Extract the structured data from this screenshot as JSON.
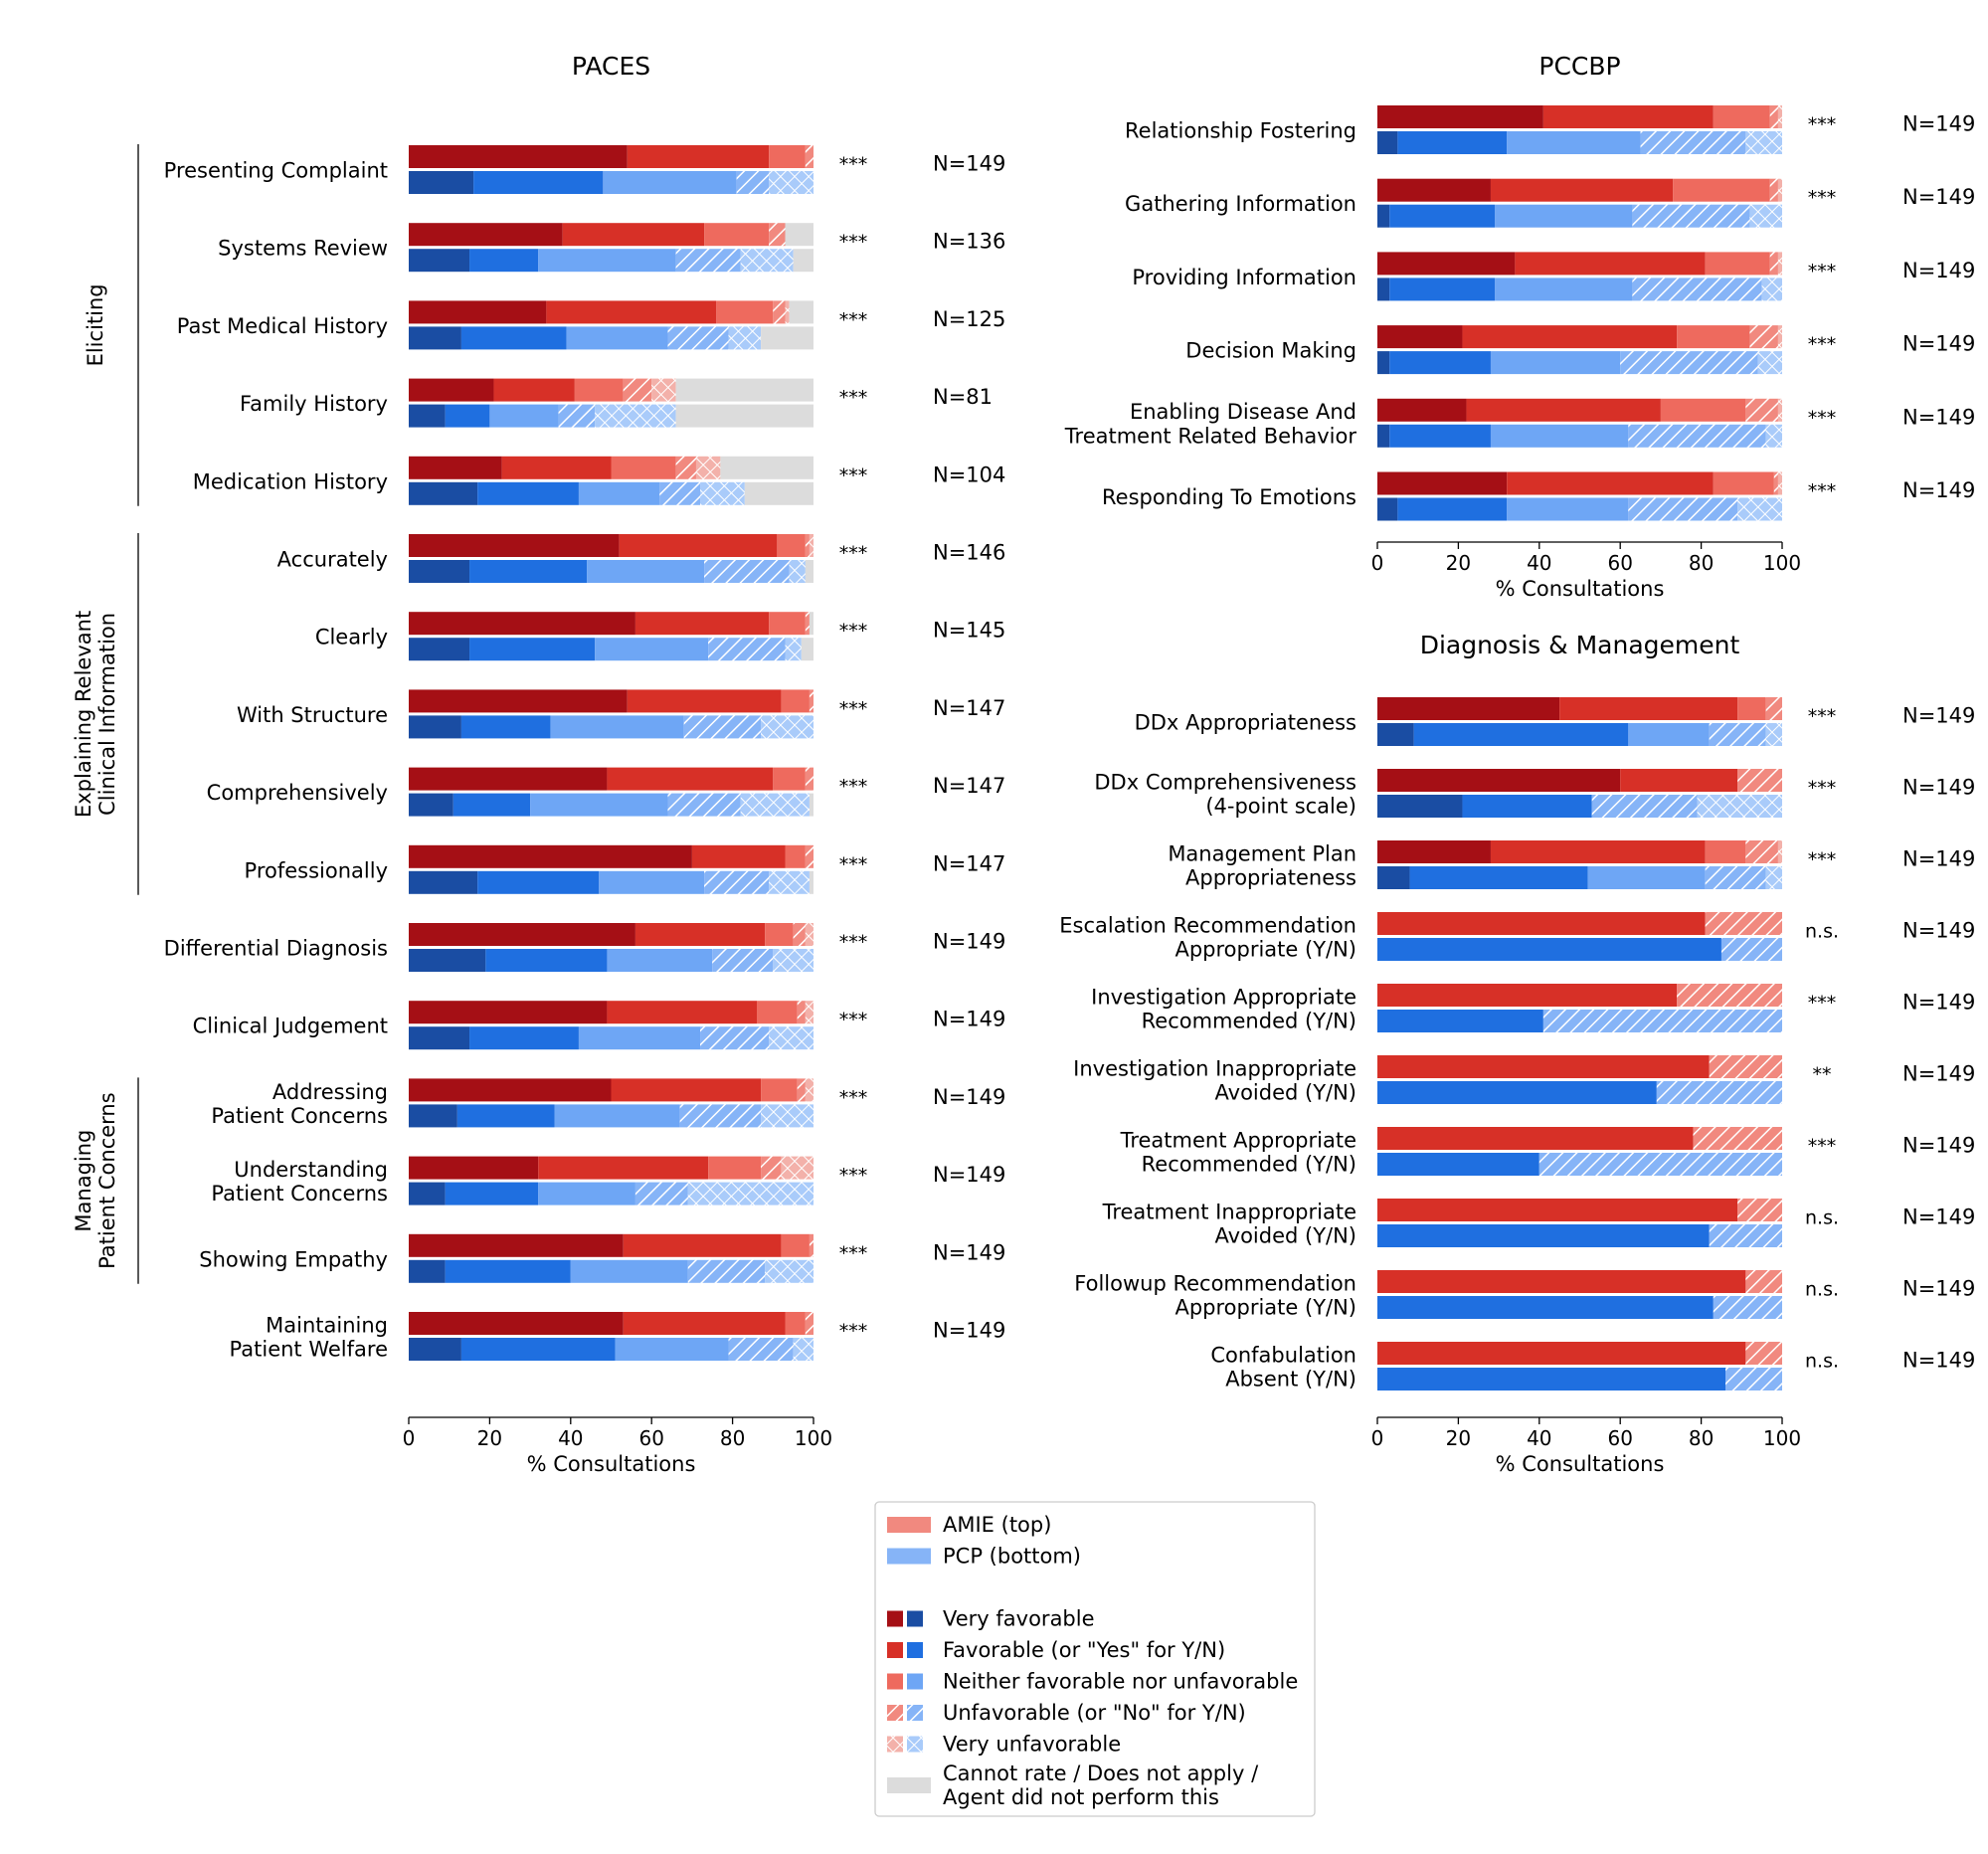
{
  "legend": {
    "items": [
      {
        "label": "AMIE (top)",
        "kind": "amie"
      },
      {
        "label": "PCP (bottom)",
        "kind": "pcp"
      },
      {
        "label": "",
        "kind": "blank"
      },
      {
        "label": "Very favorable",
        "kind": "cat",
        "cat": 0
      },
      {
        "label": "Favorable (or \"Yes\" for Y/N)",
        "kind": "cat",
        "cat": 1
      },
      {
        "label": "Neither favorable nor unfavorable",
        "kind": "cat",
        "cat": 2
      },
      {
        "label": "Unfavorable (or \"No\" for Y/N)",
        "kind": "cat",
        "cat": 3
      },
      {
        "label": "Very unfavorable",
        "kind": "cat",
        "cat": 4
      },
      {
        "label": "Cannot rate / Does not apply / \nAgent did not perform this",
        "kind": "cat",
        "cat": 5
      }
    ]
  },
  "colors": {
    "amie": [
      "#a50f15",
      "#d73027",
      "#ee6a5e",
      "#f1897f",
      "#f3b1aa",
      "#dcdcdc"
    ],
    "pcp": [
      "#1a4da3",
      "#1f6fe0",
      "#6ea6f5",
      "#86b4f7",
      "#a9cbfa",
      "#dcdcdc"
    ],
    "legend_amie": "#f1897f",
    "legend_pcp": "#86b4f7"
  },
  "chart_data": [
    {
      "type": "bar",
      "title": "PACES",
      "xlabel": "% Consultations",
      "xlim": [
        0,
        100
      ],
      "xticks": [
        0,
        20,
        40,
        60,
        80,
        100
      ],
      "groups": [
        {
          "label": "Eliciting",
          "rows": [
            0,
            4
          ]
        },
        {
          "label": "Explaining Relevant\nClinical Information",
          "rows": [
            5,
            9
          ]
        },
        {
          "label": "Managing\nPatient Concerns",
          "rows": [
            12,
            14
          ]
        }
      ],
      "rows": [
        {
          "label": "Presenting Complaint",
          "sig": "***",
          "n": "N=149",
          "amie": [
            54,
            35,
            9,
            2,
            0,
            0
          ],
          "pcp": [
            16,
            32,
            33,
            8,
            11,
            0
          ]
        },
        {
          "label": "Systems Review",
          "sig": "***",
          "n": "N=136",
          "amie": [
            38,
            35,
            16,
            4,
            0,
            7
          ],
          "pcp": [
            15,
            17,
            34,
            16,
            13,
            5
          ]
        },
        {
          "label": "Past Medical History",
          "sig": "***",
          "n": "N=125",
          "amie": [
            34,
            42,
            14,
            3,
            1,
            6
          ],
          "pcp": [
            13,
            26,
            25,
            15,
            8,
            13
          ]
        },
        {
          "label": "Family History",
          "sig": "***",
          "n": "N=81",
          "amie": [
            21,
            20,
            12,
            7,
            6,
            34
          ],
          "pcp": [
            9,
            11,
            17,
            9,
            20,
            34
          ]
        },
        {
          "label": "Medication History",
          "sig": "***",
          "n": "N=104",
          "amie": [
            23,
            27,
            16,
            5,
            6,
            23
          ],
          "pcp": [
            17,
            25,
            20,
            10,
            11,
            17
          ]
        },
        {
          "label": "Accurately",
          "sig": "***",
          "n": "N=146",
          "amie": [
            52,
            39,
            7,
            1,
            1,
            0
          ],
          "pcp": [
            15,
            29,
            29,
            21,
            4,
            2
          ]
        },
        {
          "label": "Clearly",
          "sig": "***",
          "n": "N=145",
          "amie": [
            56,
            33,
            9,
            1,
            0,
            1
          ],
          "pcp": [
            15,
            31,
            28,
            19,
            4,
            3
          ]
        },
        {
          "label": "With Structure",
          "sig": "***",
          "n": "N=147",
          "amie": [
            54,
            38,
            7,
            1,
            0,
            0
          ],
          "pcp": [
            13,
            22,
            33,
            19,
            13,
            0
          ]
        },
        {
          "label": "Comprehensively",
          "sig": "***",
          "n": "N=147",
          "amie": [
            49,
            41,
            8,
            2,
            0,
            0
          ],
          "pcp": [
            11,
            19,
            34,
            18,
            17,
            1
          ]
        },
        {
          "label": "Professionally",
          "sig": "***",
          "n": "N=147",
          "amie": [
            70,
            23,
            5,
            2,
            0,
            0
          ],
          "pcp": [
            17,
            30,
            26,
            16,
            10,
            1
          ]
        },
        {
          "label": "Differential Diagnosis",
          "sig": "***",
          "n": "N=149",
          "amie": [
            56,
            32,
            7,
            3,
            2,
            0
          ],
          "pcp": [
            19,
            30,
            26,
            15,
            10,
            0
          ]
        },
        {
          "label": "Clinical Judgement",
          "sig": "***",
          "n": "N=149",
          "amie": [
            49,
            37,
            10,
            2,
            2,
            0
          ],
          "pcp": [
            15,
            27,
            30,
            17,
            11,
            0
          ]
        },
        {
          "label": "Addressing\nPatient Concerns",
          "sig": "***",
          "n": "N=149",
          "amie": [
            50,
            37,
            9,
            2,
            2,
            0
          ],
          "pcp": [
            12,
            24,
            31,
            20,
            13,
            0
          ]
        },
        {
          "label": "Understanding\nPatient Concerns",
          "sig": "***",
          "n": "N=149",
          "amie": [
            32,
            42,
            13,
            5,
            8,
            0
          ],
          "pcp": [
            9,
            23,
            24,
            13,
            31,
            0
          ]
        },
        {
          "label": "Showing Empathy",
          "sig": "***",
          "n": "N=149",
          "amie": [
            53,
            39,
            7,
            1,
            0,
            0
          ],
          "pcp": [
            9,
            31,
            29,
            19,
            12,
            0
          ]
        },
        {
          "label": "Maintaining\nPatient Welfare",
          "sig": "***",
          "n": "N=149",
          "amie": [
            53,
            40,
            5,
            2,
            0,
            0
          ],
          "pcp": [
            13,
            38,
            28,
            16,
            5,
            0
          ]
        }
      ]
    },
    {
      "type": "bar",
      "title": "PCCBP",
      "xlabel": "% Consultations",
      "xlim": [
        0,
        100
      ],
      "xticks": [
        0,
        20,
        40,
        60,
        80,
        100
      ],
      "rows": [
        {
          "label": "Relationship Fostering",
          "sig": "***",
          "n": "N=149",
          "amie": [
            41,
            42,
            14,
            2,
            1,
            0
          ],
          "pcp": [
            5,
            27,
            33,
            26,
            9,
            0
          ]
        },
        {
          "label": "Gathering Information",
          "sig": "***",
          "n": "N=149",
          "amie": [
            28,
            45,
            24,
            2,
            1,
            0
          ],
          "pcp": [
            3,
            26,
            34,
            29,
            8,
            0
          ]
        },
        {
          "label": "Providing Information",
          "sig": "***",
          "n": "N=149",
          "amie": [
            34,
            47,
            16,
            2,
            1,
            0
          ],
          "pcp": [
            3,
            26,
            34,
            32,
            5,
            0
          ]
        },
        {
          "label": "Decision Making",
          "sig": "***",
          "n": "N=149",
          "amie": [
            21,
            53,
            18,
            7,
            1,
            0
          ],
          "pcp": [
            3,
            25,
            32,
            34,
            6,
            0
          ]
        },
        {
          "label": "Enabling Disease And\nTreatment Related Behavior",
          "sig": "***",
          "n": "N=149",
          "amie": [
            22,
            48,
            21,
            8,
            1,
            0
          ],
          "pcp": [
            3,
            25,
            34,
            34,
            4,
            0
          ]
        },
        {
          "label": "Responding To Emotions",
          "sig": "***",
          "n": "N=149",
          "amie": [
            32,
            51,
            15,
            1,
            1,
            0
          ],
          "pcp": [
            5,
            27,
            30,
            27,
            11,
            0
          ]
        }
      ]
    },
    {
      "type": "bar",
      "title": "Diagnosis & Management",
      "xlabel": "% Consultations",
      "xlim": [
        0,
        100
      ],
      "xticks": [
        0,
        20,
        40,
        60,
        80,
        100
      ],
      "rows": [
        {
          "label": "DDx Appropriateness",
          "sig": "***",
          "n": "N=149",
          "amie": [
            45,
            44,
            7,
            4,
            0,
            0
          ],
          "pcp": [
            9,
            53,
            20,
            14,
            4,
            0
          ]
        },
        {
          "label": "DDx Comprehensiveness\n(4-point scale)",
          "sig": "***",
          "n": "N=149",
          "amie": [
            60,
            29,
            0,
            11,
            0,
            0
          ],
          "pcp": [
            21,
            32,
            0,
            26,
            21,
            0
          ]
        },
        {
          "label": "Management Plan\nAppropriateness",
          "sig": "***",
          "n": "N=149",
          "amie": [
            28,
            53,
            10,
            8,
            1,
            0
          ],
          "pcp": [
            8,
            44,
            29,
            15,
            4,
            0
          ]
        },
        {
          "label": "Escalation Recommendation\nAppropriate (Y/N)",
          "sig": "n.s.",
          "n": "N=149",
          "amie": [
            0,
            81,
            0,
            19,
            0,
            0
          ],
          "pcp": [
            0,
            85,
            0,
            15,
            0,
            0
          ]
        },
        {
          "label": "Investigation Appropriate\nRecommended (Y/N)",
          "sig": "***",
          "n": "N=149",
          "amie": [
            0,
            74,
            0,
            26,
            0,
            0
          ],
          "pcp": [
            0,
            41,
            0,
            59,
            0,
            0
          ]
        },
        {
          "label": "Investigation Inappropriate\nAvoided (Y/N)",
          "sig": "**",
          "n": "N=149",
          "amie": [
            0,
            82,
            0,
            18,
            0,
            0
          ],
          "pcp": [
            0,
            69,
            0,
            31,
            0,
            0
          ]
        },
        {
          "label": "Treatment Appropriate\nRecommended (Y/N)",
          "sig": "***",
          "n": "N=149",
          "amie": [
            0,
            78,
            0,
            22,
            0,
            0
          ],
          "pcp": [
            0,
            40,
            0,
            60,
            0,
            0
          ]
        },
        {
          "label": "Treatment Inappropriate\nAvoided (Y/N)",
          "sig": "n.s.",
          "n": "N=149",
          "amie": [
            0,
            89,
            0,
            11,
            0,
            0
          ],
          "pcp": [
            0,
            82,
            0,
            18,
            0,
            0
          ]
        },
        {
          "label": "Followup Recommendation\nAppropriate (Y/N)",
          "sig": "n.s.",
          "n": "N=149",
          "amie": [
            0,
            91,
            0,
            9,
            0,
            0
          ],
          "pcp": [
            0,
            83,
            0,
            17,
            0,
            0
          ]
        },
        {
          "label": "Confabulation\nAbsent (Y/N)",
          "sig": "n.s.",
          "n": "N=149",
          "amie": [
            0,
            91,
            0,
            9,
            0,
            0
          ],
          "pcp": [
            0,
            86,
            0,
            14,
            0,
            0
          ]
        }
      ]
    }
  ]
}
